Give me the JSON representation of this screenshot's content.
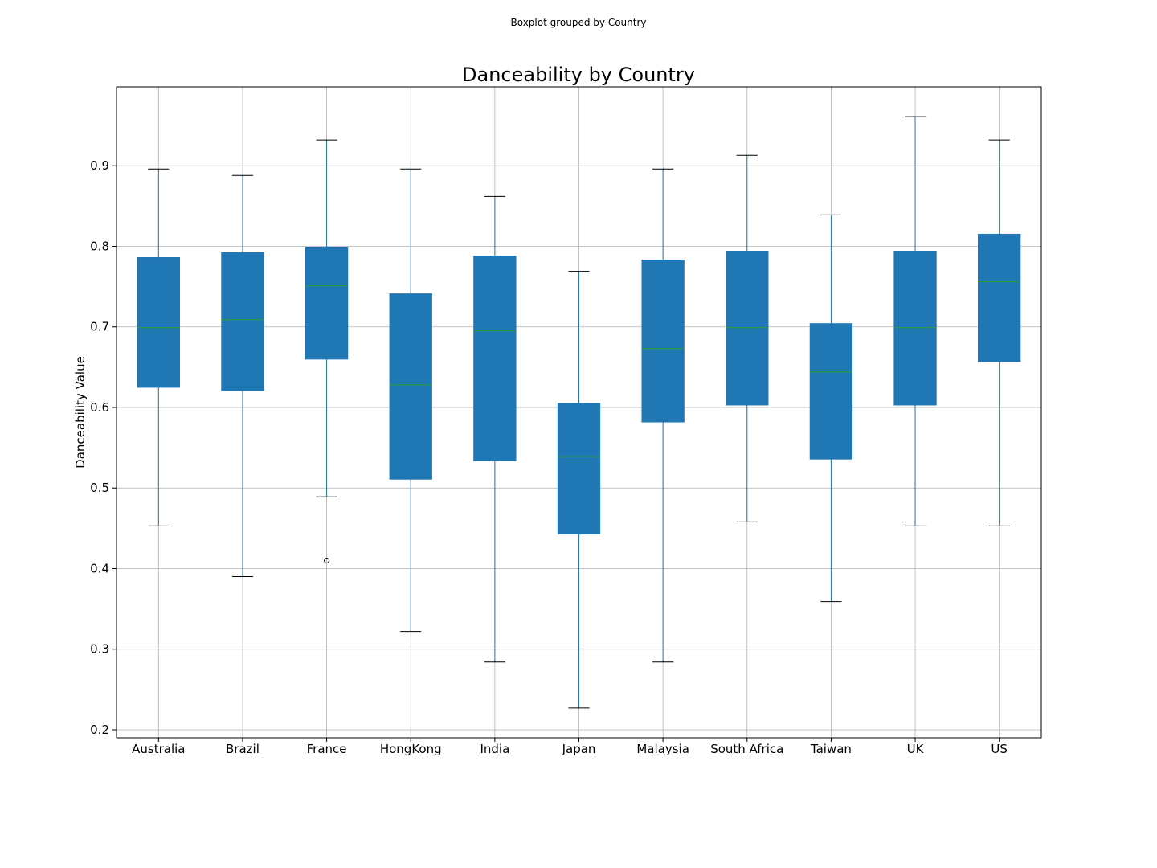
{
  "suptitle": "Boxplot grouped by Country",
  "chart_data": {
    "type": "box",
    "title": "Danceability by Country",
    "xlabel": "",
    "ylabel": "Danceability Value",
    "ylim": [
      0.19,
      0.998
    ],
    "yticks": [
      0.2,
      0.3,
      0.4,
      0.5,
      0.6,
      0.7,
      0.8,
      0.9
    ],
    "grid": true,
    "box_color": "#1f77b4",
    "median_color": "#2ca02c",
    "whisker_color": "#1f77b4",
    "cap_color": "#000000",
    "categories": [
      "Australia",
      "Brazil",
      "France",
      "HongKong",
      "India",
      "Japan",
      "Malaysia",
      "South Africa",
      "Taiwan",
      "UK",
      "US"
    ],
    "boxes": [
      {
        "category": "Australia",
        "whislo": 0.453,
        "q1": 0.625,
        "med": 0.699,
        "q3": 0.786,
        "whishi": 0.896,
        "fliers": []
      },
      {
        "category": "Brazil",
        "whislo": 0.39,
        "q1": 0.621,
        "med": 0.709,
        "q3": 0.792,
        "whishi": 0.888,
        "fliers": []
      },
      {
        "category": "France",
        "whislo": 0.489,
        "q1": 0.66,
        "med": 0.751,
        "q3": 0.799,
        "whishi": 0.932,
        "fliers": [
          0.41
        ]
      },
      {
        "category": "HongKong",
        "whislo": 0.322,
        "q1": 0.511,
        "med": 0.628,
        "q3": 0.741,
        "whishi": 0.896,
        "fliers": []
      },
      {
        "category": "India",
        "whislo": 0.284,
        "q1": 0.534,
        "med": 0.695,
        "q3": 0.788,
        "whishi": 0.862,
        "fliers": []
      },
      {
        "category": "Japan",
        "whislo": 0.227,
        "q1": 0.443,
        "med": 0.539,
        "q3": 0.605,
        "whishi": 0.769,
        "fliers": []
      },
      {
        "category": "Malaysia",
        "whislo": 0.284,
        "q1": 0.582,
        "med": 0.673,
        "q3": 0.783,
        "whishi": 0.896,
        "fliers": []
      },
      {
        "category": "South Africa",
        "whislo": 0.458,
        "q1": 0.603,
        "med": 0.699,
        "q3": 0.794,
        "whishi": 0.913,
        "fliers": []
      },
      {
        "category": "Taiwan",
        "whislo": 0.359,
        "q1": 0.536,
        "med": 0.644,
        "q3": 0.704,
        "whishi": 0.839,
        "fliers": []
      },
      {
        "category": "UK",
        "whislo": 0.453,
        "q1": 0.603,
        "med": 0.699,
        "q3": 0.794,
        "whishi": 0.961,
        "fliers": []
      },
      {
        "category": "US",
        "whislo": 0.453,
        "q1": 0.657,
        "med": 0.756,
        "q3": 0.815,
        "whishi": 0.932,
        "fliers": []
      }
    ]
  }
}
